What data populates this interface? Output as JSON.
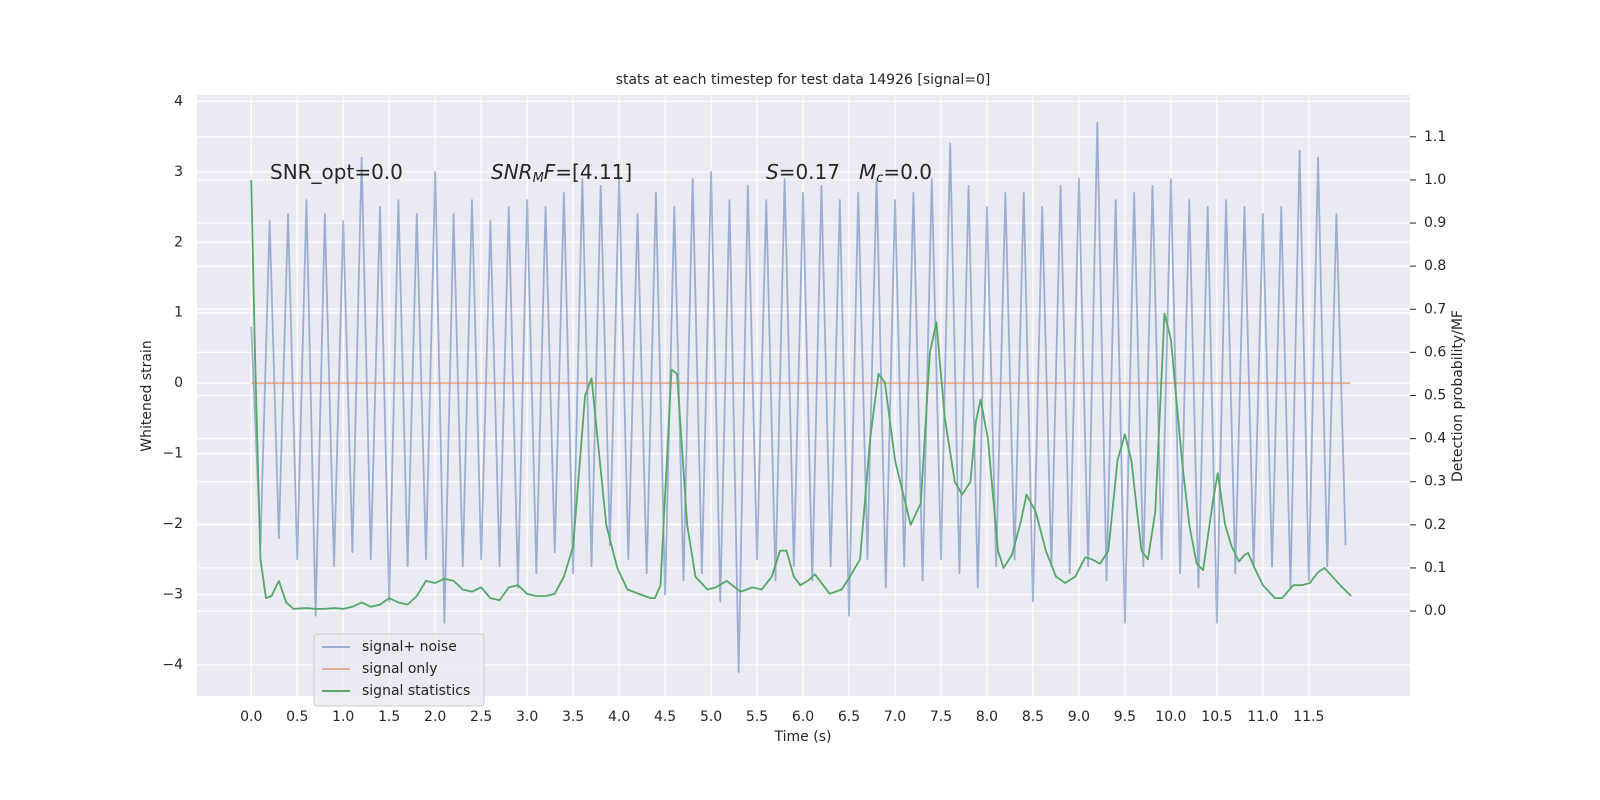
{
  "chart_data": {
    "type": "line",
    "title": "stats at each timestep for test data 14926 [signal=0]",
    "xlabel": "Time (s)",
    "ylabel": "Whitened strain",
    "y2label": "Detection probability/MF",
    "xlim": [
      -0.59,
      12.6
    ],
    "ylim": [
      -4.44,
      4.09
    ],
    "y2lim": [
      -0.197,
      1.197
    ],
    "grid": true,
    "legend": "lower left",
    "background": "#eaeaf2",
    "xticks": [
      {
        "value": 0,
        "label": "0.0"
      },
      {
        "value": 0.5,
        "label": "0.5"
      },
      {
        "value": 1,
        "label": "1.0"
      },
      {
        "value": 1.5,
        "label": "1.5"
      },
      {
        "value": 2,
        "label": "2.0"
      },
      {
        "value": 2.5,
        "label": "2.5"
      },
      {
        "value": 3,
        "label": "3.0"
      },
      {
        "value": 3.5,
        "label": "3.5"
      },
      {
        "value": 4,
        "label": "4.0"
      },
      {
        "value": 4.5,
        "label": "4.5"
      },
      {
        "value": 5,
        "label": "5.0"
      },
      {
        "value": 5.5,
        "label": "5.5"
      },
      {
        "value": 6,
        "label": "6.0"
      },
      {
        "value": 6.5,
        "label": "6.5"
      },
      {
        "value": 7,
        "label": "7.0"
      },
      {
        "value": 7.5,
        "label": "7.5"
      },
      {
        "value": 8,
        "label": "8.0"
      },
      {
        "value": 8.5,
        "label": "8.5"
      },
      {
        "value": 9,
        "label": "9.0"
      },
      {
        "value": 9.5,
        "label": "9.5"
      },
      {
        "value": 10,
        "label": "10.0"
      },
      {
        "value": 10.5,
        "label": "10.5"
      },
      {
        "value": 11,
        "label": "11.0"
      },
      {
        "value": 11.5,
        "label": "11.5"
      }
    ],
    "yticks": [
      {
        "value": -4,
        "label": "−4"
      },
      {
        "value": -3,
        "label": "−3"
      },
      {
        "value": -2,
        "label": "−2"
      },
      {
        "value": -1,
        "label": "−1"
      },
      0,
      1,
      2,
      3,
      4
    ],
    "y2ticks": [
      {
        "value": 0,
        "label": "0.0"
      },
      {
        "value": 0.1,
        "label": "0.1"
      },
      {
        "value": 0.2,
        "label": "0.2"
      },
      {
        "value": 0.3,
        "label": "0.3"
      },
      {
        "value": 0.4,
        "label": "0.4"
      },
      {
        "value": 0.5,
        "label": "0.5"
      },
      {
        "value": 0.6,
        "label": "0.6"
      },
      {
        "value": 0.7,
        "label": "0.7"
      },
      {
        "value": 0.8,
        "label": "0.8"
      },
      {
        "value": 0.9,
        "label": "0.9"
      },
      {
        "value": 1,
        "label": "1.0"
      },
      {
        "value": 1.1,
        "label": "1.1"
      }
    ],
    "annotations": [
      [
        {
          "text": "SNR_opt=0.0"
        }
      ],
      [
        {
          "text": "SNR",
          "italic": true
        },
        {
          "text": "M",
          "italic": true,
          "sub": true
        },
        {
          "text": "F",
          "italic": true
        },
        {
          "text": "=[4.11]"
        }
      ],
      [
        {
          "text": "S",
          "italic": true
        },
        {
          "text": "=0.17"
        }
      ],
      [
        {
          "text": "M",
          "italic": true
        },
        {
          "text": "c",
          "italic": true,
          "sub": true
        },
        {
          "text": "=0.0"
        }
      ]
    ],
    "series": [
      {
        "name": "signal+ noise",
        "color": "#4c72b0",
        "opacity": 0.5,
        "x": [
          0.0,
          0.1,
          0.2,
          0.3,
          0.4,
          0.5,
          0.6,
          0.7,
          0.8,
          0.9,
          1.0,
          1.1,
          1.2,
          1.3,
          1.4,
          1.5,
          1.6,
          1.7,
          1.8,
          1.9,
          2.0,
          2.1,
          2.2,
          2.3,
          2.4,
          2.5,
          2.6,
          2.7,
          2.8,
          2.9,
          3.0,
          3.1,
          3.2,
          3.3,
          3.4,
          3.5,
          3.6,
          3.7,
          3.8,
          3.9,
          4.0,
          4.1,
          4.2,
          4.3,
          4.4,
          4.5,
          4.6,
          4.7,
          4.8,
          4.9,
          5.0,
          5.1,
          5.2,
          5.3,
          5.4,
          5.5,
          5.6,
          5.7,
          5.8,
          5.9,
          6.0,
          6.1,
          6.2,
          6.3,
          6.4,
          6.5,
          6.6,
          6.7,
          6.8,
          6.9,
          7.0,
          7.1,
          7.2,
          7.3,
          7.4,
          7.5,
          7.6,
          7.7,
          7.8,
          7.9,
          8.0,
          8.1,
          8.2,
          8.3,
          8.4,
          8.5,
          8.6,
          8.7,
          8.8,
          8.9,
          9.0,
          9.1,
          9.2,
          9.3,
          9.4,
          9.5,
          9.6,
          9.7,
          9.8,
          9.9,
          10.0,
          10.1,
          10.2,
          10.3,
          10.4,
          10.5,
          10.6,
          10.7,
          10.8,
          10.9,
          11.0,
          11.1,
          11.2,
          11.3,
          11.4,
          11.5,
          11.6,
          11.7,
          11.8,
          11.9
        ],
        "values": [
          0.8,
          -2.3,
          2.3,
          -2.2,
          2.4,
          -2.5,
          2.6,
          -3.3,
          2.4,
          -2.6,
          2.3,
          -2.4,
          3.2,
          -2.5,
          2.5,
          -3.1,
          2.6,
          -2.6,
          2.4,
          -2.5,
          3.0,
          -3.4,
          2.4,
          -2.6,
          2.6,
          -2.5,
          2.3,
          -2.6,
          2.5,
          -2.9,
          2.6,
          -2.7,
          2.5,
          -2.4,
          2.7,
          -2.7,
          2.9,
          -2.6,
          2.8,
          -2.3,
          2.9,
          -2.5,
          2.4,
          -2.7,
          2.7,
          -3.0,
          2.5,
          -2.8,
          2.9,
          -2.7,
          3.0,
          -3.1,
          2.6,
          -4.1,
          2.8,
          -2.5,
          2.6,
          -2.8,
          2.9,
          -2.6,
          2.7,
          -2.8,
          2.8,
          -2.6,
          2.6,
          -3.3,
          2.7,
          -2.5,
          2.9,
          -2.9,
          2.6,
          -2.6,
          2.7,
          -2.8,
          2.9,
          -2.5,
          3.4,
          -2.7,
          2.8,
          -2.9,
          2.5,
          -2.6,
          2.7,
          -2.5,
          2.7,
          -3.1,
          2.5,
          -2.6,
          2.8,
          -2.7,
          2.9,
          -2.6,
          3.7,
          -2.8,
          2.6,
          -3.4,
          2.7,
          -2.6,
          2.8,
          -2.5,
          2.9,
          -2.7,
          2.6,
          -2.9,
          2.5,
          -3.4,
          2.6,
          -2.7,
          2.5,
          -2.6,
          2.4,
          -2.6,
          2.5,
          -2.9,
          3.3,
          -2.8,
          3.2,
          -2.6,
          2.4,
          -2.3
        ]
      },
      {
        "name": "signal only",
        "color": "#dd8452",
        "opacity": 0.6,
        "x": [
          0.0,
          11.95
        ],
        "values": [
          0,
          0
        ]
      },
      {
        "name": "signal statistics",
        "color": "#55a868",
        "opacity": 1,
        "axis": "y2",
        "x": [
          0.0,
          0.04,
          0.1,
          0.16,
          0.22,
          0.3,
          0.38,
          0.46,
          0.6,
          0.7,
          0.8,
          0.9,
          1.0,
          1.1,
          1.2,
          1.3,
          1.4,
          1.5,
          1.6,
          1.7,
          1.8,
          1.9,
          2.0,
          2.1,
          2.2,
          2.3,
          2.4,
          2.5,
          2.6,
          2.7,
          2.8,
          2.9,
          3.0,
          3.1,
          3.2,
          3.3,
          3.4,
          3.5,
          3.63,
          3.7,
          3.86,
          3.98,
          4.09,
          4.34,
          4.39,
          4.45,
          4.57,
          4.63,
          4.74,
          4.83,
          4.96,
          5.05,
          5.17,
          5.32,
          5.45,
          5.55,
          5.66,
          5.75,
          5.82,
          5.9,
          5.97,
          6.05,
          6.13,
          6.29,
          6.42,
          6.51,
          6.62,
          6.73,
          6.82,
          6.89,
          7.0,
          7.17,
          7.28,
          7.38,
          7.45,
          7.54,
          7.65,
          7.73,
          7.82,
          7.88,
          7.93,
          8.01,
          8.12,
          8.18,
          8.27,
          8.36,
          8.43,
          8.53,
          8.64,
          8.75,
          8.85,
          8.96,
          9.07,
          9.14,
          9.23,
          9.32,
          9.42,
          9.5,
          9.57,
          9.68,
          9.75,
          9.83,
          9.93,
          10.0,
          10.12,
          10.2,
          10.28,
          10.35,
          10.46,
          10.51,
          10.59,
          10.66,
          10.74,
          10.8,
          10.84,
          10.91,
          11.0,
          11.13,
          11.21,
          11.33,
          11.42,
          11.51,
          11.6,
          11.67,
          11.84,
          11.96
        ],
        "values": [
          1.0,
          0.6,
          0.12,
          0.03,
          0.035,
          0.07,
          0.02,
          0.005,
          0.007,
          0.005,
          0.005,
          0.007,
          0.005,
          0.01,
          0.02,
          0.01,
          0.015,
          0.03,
          0.02,
          0.015,
          0.035,
          0.07,
          0.065,
          0.075,
          0.07,
          0.05,
          0.045,
          0.055,
          0.03,
          0.025,
          0.055,
          0.06,
          0.04,
          0.035,
          0.035,
          0.04,
          0.08,
          0.15,
          0.5,
          0.54,
          0.2,
          0.1,
          0.05,
          0.03,
          0.03,
          0.06,
          0.56,
          0.55,
          0.2,
          0.08,
          0.05,
          0.055,
          0.07,
          0.045,
          0.055,
          0.05,
          0.08,
          0.14,
          0.14,
          0.08,
          0.06,
          0.07,
          0.085,
          0.04,
          0.05,
          0.08,
          0.12,
          0.4,
          0.55,
          0.53,
          0.35,
          0.2,
          0.25,
          0.6,
          0.67,
          0.45,
          0.3,
          0.27,
          0.3,
          0.44,
          0.49,
          0.4,
          0.14,
          0.1,
          0.13,
          0.2,
          0.27,
          0.23,
          0.14,
          0.08,
          0.065,
          0.08,
          0.125,
          0.12,
          0.11,
          0.14,
          0.35,
          0.41,
          0.35,
          0.14,
          0.12,
          0.23,
          0.69,
          0.63,
          0.35,
          0.2,
          0.11,
          0.095,
          0.26,
          0.32,
          0.2,
          0.15,
          0.115,
          0.13,
          0.135,
          0.1,
          0.06,
          0.03,
          0.03,
          0.06,
          0.06,
          0.065,
          0.09,
          0.1,
          0.06,
          0.035
        ]
      }
    ]
  }
}
